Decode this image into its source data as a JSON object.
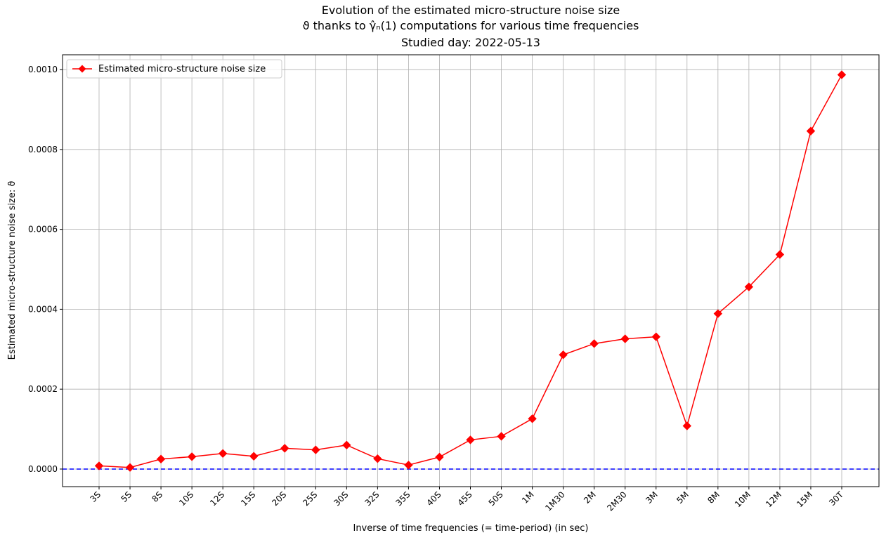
{
  "chart_data": {
    "type": "line",
    "title_lines": [
      "Evolution of the estimated micro-structure noise size",
      "ϑ thanks to γ̂ₙ(1) computations for various time frequencies",
      "Studied day: 2022-05-13"
    ],
    "xlabel": "Inverse of time frequencies (= time-period) (in sec)",
    "ylabel": "Estimated micro-structure noise size: ϑ",
    "categories": [
      "3S",
      "5S",
      "8S",
      "10S",
      "12S",
      "15S",
      "20S",
      "25S",
      "30S",
      "32S",
      "35S",
      "40S",
      "45S",
      "50S",
      "1M",
      "1M30",
      "2M",
      "2M30",
      "3M",
      "5M",
      "8M",
      "10M",
      "12M",
      "15M",
      "30T"
    ],
    "series": [
      {
        "name": "Estimated micro-structure noise size",
        "color": "#ff0000",
        "marker": "diamond",
        "values": [
          8e-06,
          4e-06,
          2.5e-05,
          3.1e-05,
          3.9e-05,
          3.2e-05,
          5.2e-05,
          4.8e-05,
          6e-05,
          2.6e-05,
          1e-05,
          3e-05,
          7.3e-05,
          8.2e-05,
          0.000126,
          0.000286,
          0.000314,
          0.000326,
          0.000331,
          0.000108,
          0.000389,
          0.000456,
          0.000537,
          0.000846,
          0.000987
        ]
      }
    ],
    "reference_line": {
      "y": 0,
      "color": "#0000ff",
      "style": "dashed"
    },
    "ylim": [
      -4.4e-05,
      0.001037
    ],
    "yticks": [
      0,
      0.0002,
      0.0004,
      0.0006,
      0.0008,
      0.001
    ],
    "ytick_labels": [
      "0.0000",
      "0.0002",
      "0.0004",
      "0.0006",
      "0.0008",
      "0.0010"
    ],
    "grid": true,
    "legend_position": "top-left"
  }
}
